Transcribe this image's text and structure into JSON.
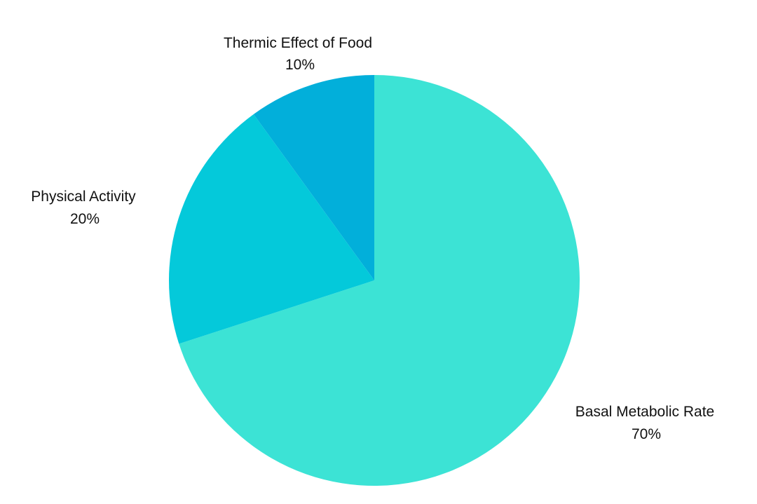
{
  "chart_data": {
    "type": "pie",
    "title": "",
    "categories": [
      "Basal Metabolic Rate",
      "Physical Activity",
      "Thermic Effect of Food"
    ],
    "values": [
      70,
      20,
      10
    ],
    "value_labels": [
      "70%",
      "20%",
      "10%"
    ],
    "colors": [
      "#3ce3d5",
      "#04c9da",
      "#02afda"
    ],
    "start_angle_deg": 0,
    "direction": "clockwise",
    "legend": "none",
    "labels_position": "outside"
  }
}
